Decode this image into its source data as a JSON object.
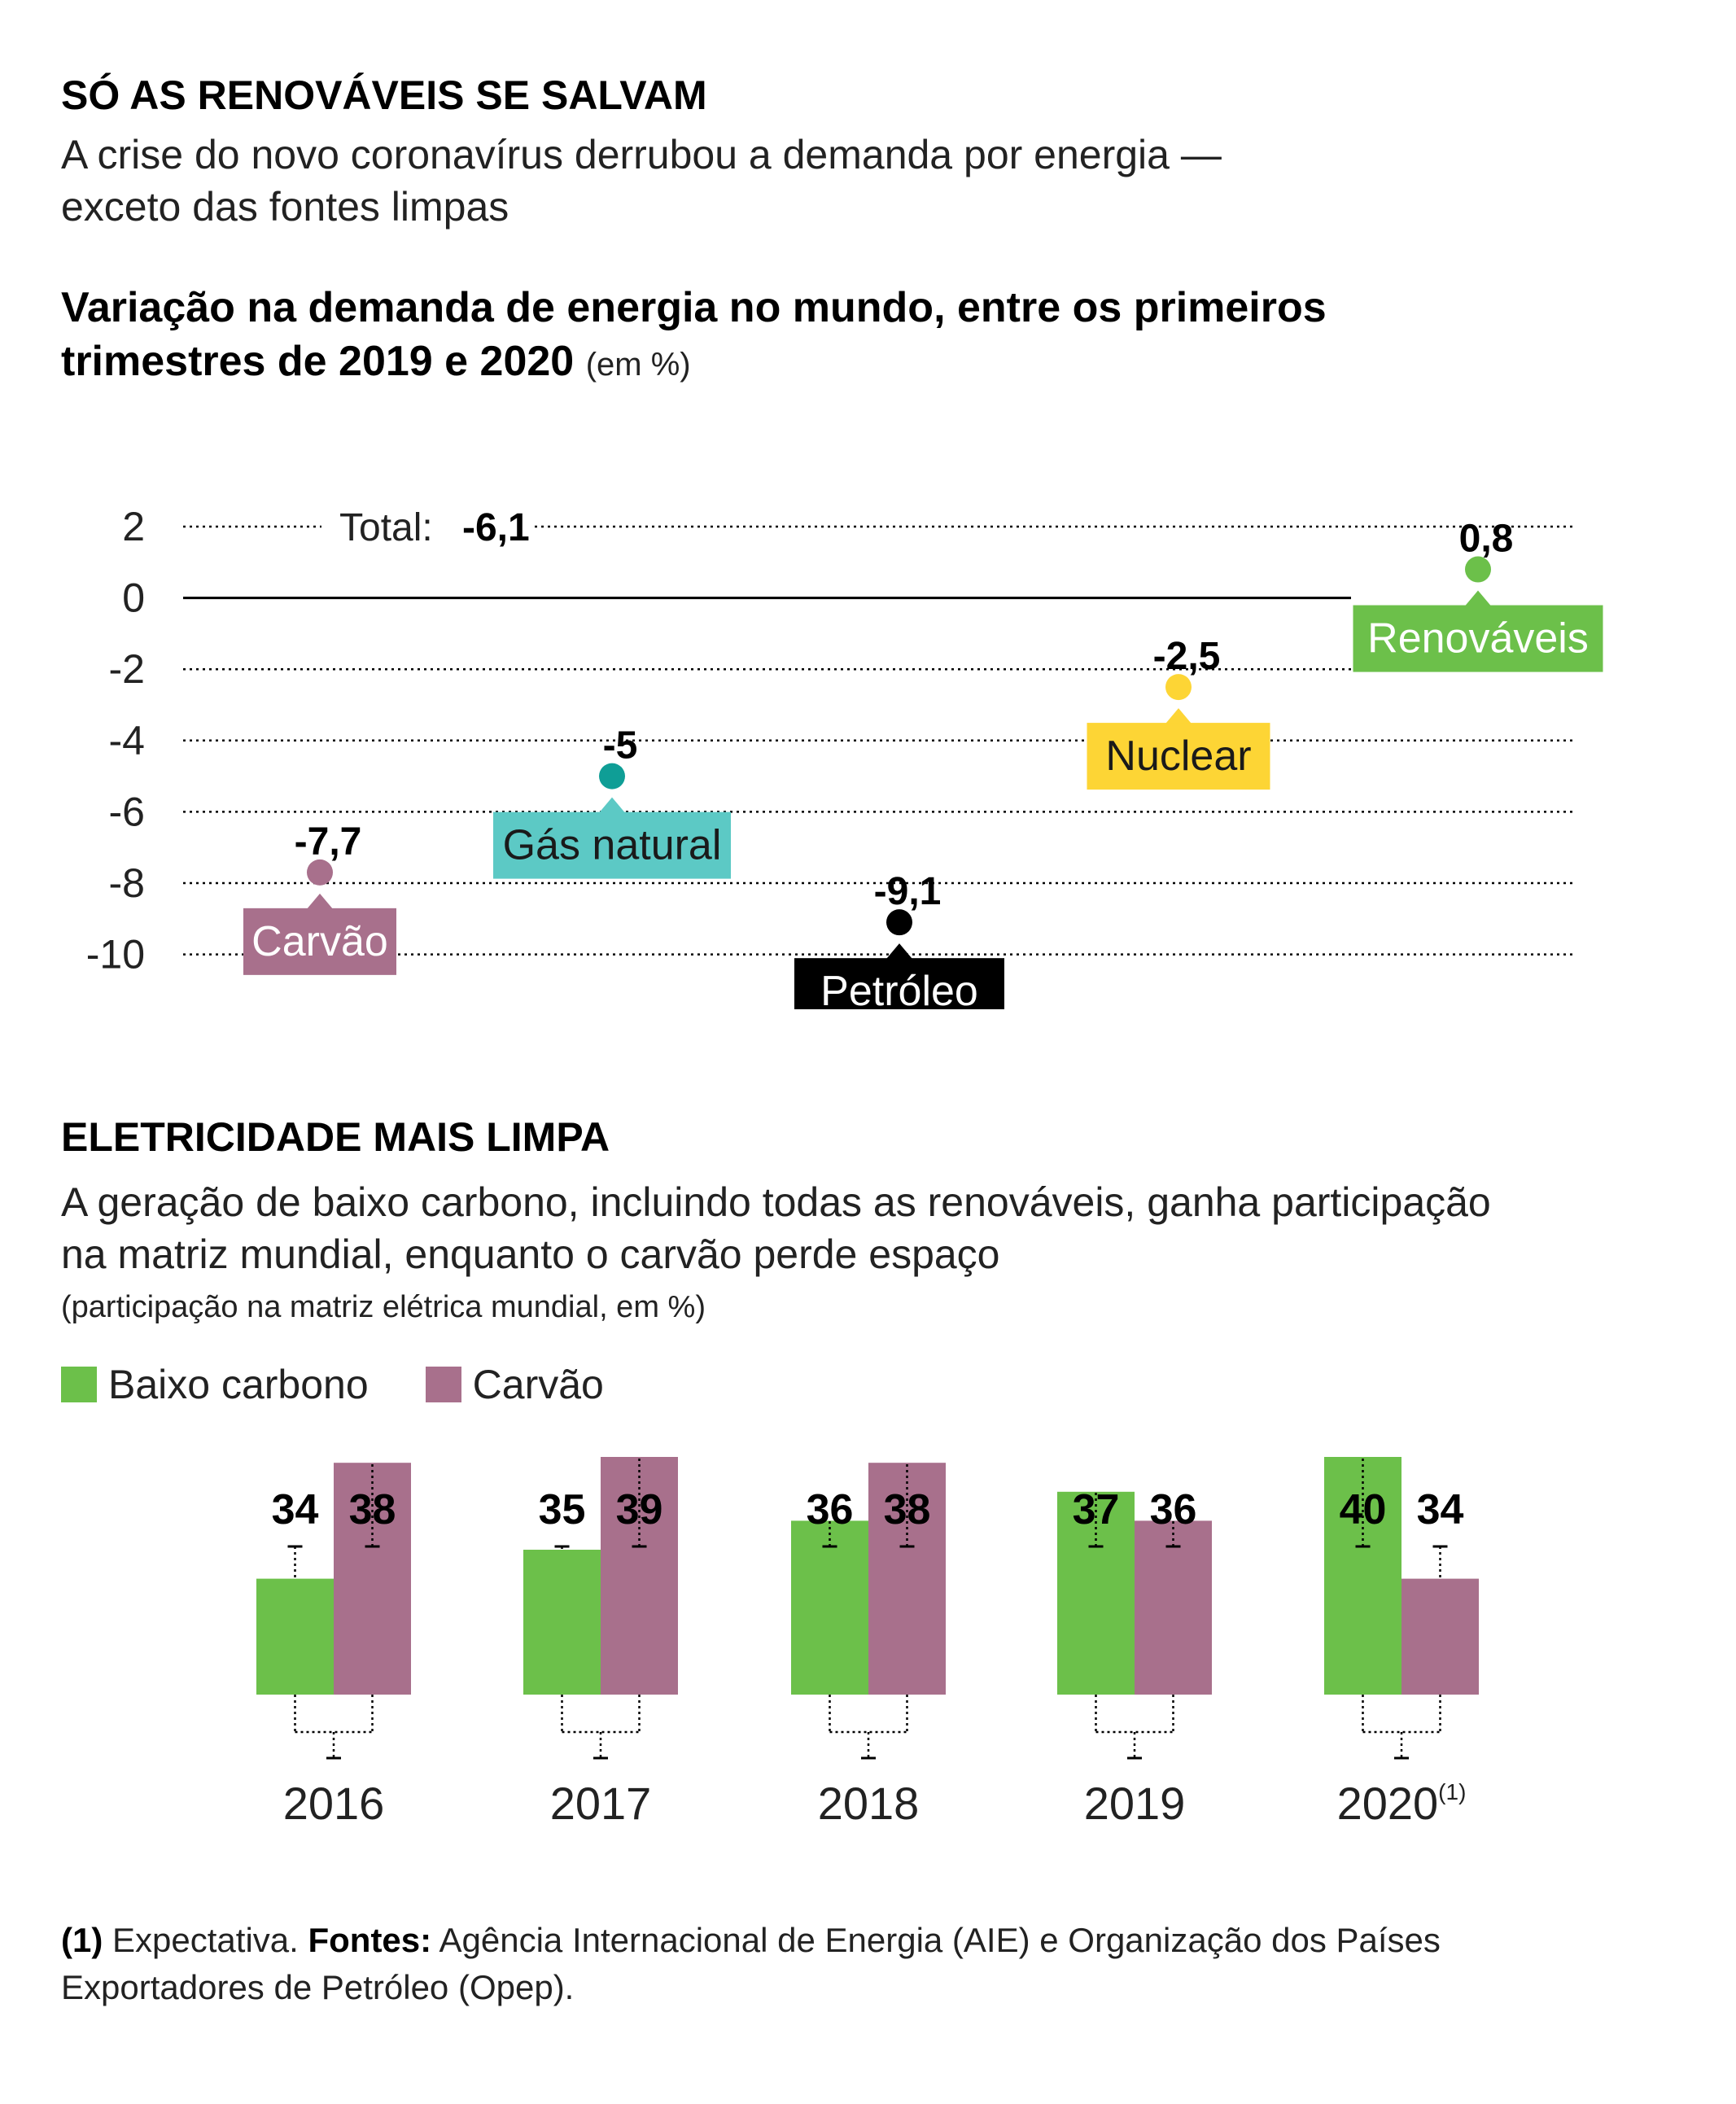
{
  "section1": {
    "heading": "SÓ AS RENOVÁVEIS SE SALVAM",
    "subtitle_line1": "A crise do novo coronavírus derrubou a demanda por energia —",
    "subtitle_line2": "exceto das fontes limpas",
    "chart_title_line1": "Variação na demanda de energia no mundo, entre os primeiros",
    "chart_title_line2": "trimestres de 2019 e 2020",
    "chart_unit": "(em %)",
    "total_label": "Total:",
    "total_value": "-6,1"
  },
  "section2": {
    "heading": "ELETRICIDADE MAIS LIMPA",
    "subtitle_line1": "A geração de baixo carbono, incluindo todas as renováveis, ganha participação",
    "subtitle_line2": "na matriz mundial, enquanto o carvão perde espaço",
    "note": "(participação na matriz elétrica mundial, em %)",
    "legend": [
      {
        "label": "Baixo carbono",
        "color": "#6cc04a"
      },
      {
        "label": "Carvão",
        "color": "#a8708c"
      }
    ]
  },
  "footnote": {
    "marker": "(1)",
    "marker_text": "Expectativa.",
    "sources_label": "Fontes:",
    "sources_text": "Agência Internacional de Energia (AIE) e Organização dos Países Exportadores de Petróleo (Opep)."
  },
  "chart_data": [
    {
      "type": "scatter",
      "title": "Variação na demanda de energia no mundo, entre os primeiros trimestres de 2019 e 2020",
      "ylabel": "(em %)",
      "ylim": [
        -10,
        2
      ],
      "yticks": [
        2,
        0,
        -2,
        -4,
        -6,
        -8,
        -10
      ],
      "ytick_labels": [
        "2",
        "0",
        "-2",
        "-4",
        "-6",
        "-8",
        "-10"
      ],
      "grid": true,
      "points": [
        {
          "name": "Carvão",
          "value": -7.7,
          "label": "-7,7",
          "color": "#a8708c",
          "text_color": "#ffffff"
        },
        {
          "name": "Gás natural",
          "value": -5,
          "label": "-5",
          "color": "#5cc9c5",
          "dot_color": "#0f9e96",
          "text_color": "#1a1a1a"
        },
        {
          "name": "Petróleo",
          "value": -9.1,
          "label": "-9,1",
          "color": "#000000",
          "text_color": "#ffffff"
        },
        {
          "name": "Nuclear",
          "value": -2.5,
          "label": "-2,5",
          "color": "#fdd535",
          "dot_color": "#fdd535",
          "text_color": "#1a1a1a"
        },
        {
          "name": "Renováveis",
          "value": 0.8,
          "label": "0,8",
          "color": "#6cc04a",
          "text_color": "#ffffff"
        }
      ]
    },
    {
      "type": "bar",
      "categories": [
        "2016",
        "2017",
        "2018",
        "2019",
        "2020"
      ],
      "category_notes": [
        "",
        "",
        "",
        "",
        "(1)"
      ],
      "series": [
        {
          "name": "Baixo carbono",
          "values": [
            34,
            35,
            36,
            37,
            40
          ],
          "color": "#6cc04a"
        },
        {
          "name": "Carvão",
          "values": [
            38,
            39,
            38,
            36,
            34
          ],
          "color": "#a8708c"
        }
      ]
    }
  ]
}
